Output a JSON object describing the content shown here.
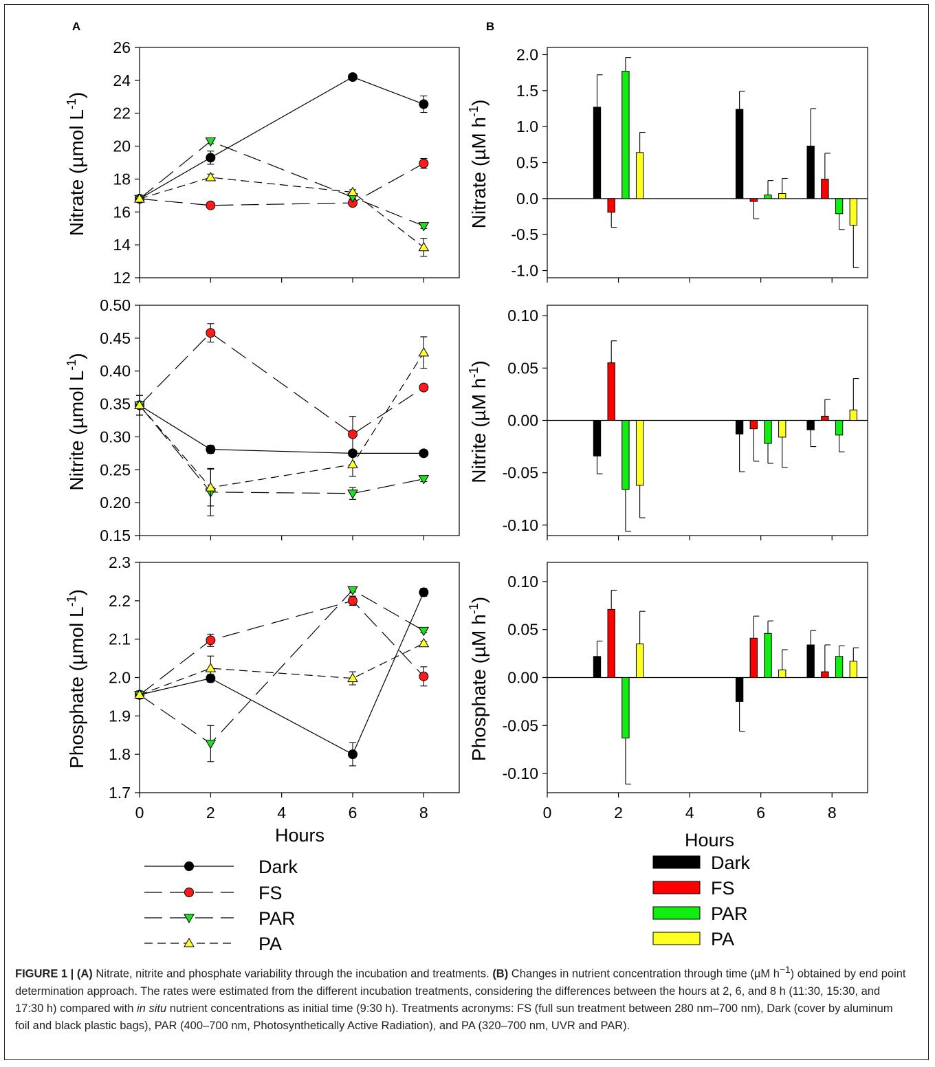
{
  "panel_labels": {
    "a": "A",
    "b": "B"
  },
  "x_label": "Hours",
  "chart_data": [
    {
      "id": "A-nitrate",
      "type": "line",
      "panel": "A",
      "ylabel": "Nitrate (µmol L⁻¹)",
      "ylabel_main": "Nitrate (µmol L",
      "ylabel_sup": "-1",
      "ylabel_end": ")",
      "xlim": [
        0,
        9
      ],
      "ylim": [
        12,
        26
      ],
      "x_ticks": [
        "0",
        "2",
        "4",
        "6",
        "8"
      ],
      "y_ticks": [
        "12",
        "14",
        "16",
        "18",
        "20",
        "22",
        "24",
        "26"
      ],
      "series": [
        {
          "name": "Dark",
          "x": [
            0,
            2,
            6,
            8
          ],
          "y": [
            16.8,
            19.3,
            24.2,
            22.55
          ],
          "err": [
            0.15,
            0.4,
            0.1,
            0.5
          ]
        },
        {
          "name": "FS",
          "x": [
            0,
            2,
            6,
            8
          ],
          "y": [
            16.8,
            16.4,
            16.55,
            18.95
          ],
          "err": [
            0.15,
            0.1,
            0.1,
            0.3
          ]
        },
        {
          "name": "PAR",
          "x": [
            0,
            2,
            6,
            8
          ],
          "y": [
            16.8,
            20.3,
            16.9,
            15.15
          ],
          "err": [
            0.15,
            0.15,
            0.1,
            0.15
          ]
        },
        {
          "name": "PA",
          "x": [
            0,
            2,
            6,
            8
          ],
          "y": [
            16.8,
            18.1,
            17.2,
            13.85
          ],
          "err": [
            0.15,
            0.2,
            0.15,
            0.55
          ]
        }
      ]
    },
    {
      "id": "A-nitrite",
      "type": "line",
      "panel": "A",
      "ylabel": "Nitrite (µmol L⁻¹)",
      "ylabel_main": "Nitrite  (µmol L",
      "ylabel_sup": "-1",
      "ylabel_end": ")",
      "xlim": [
        0,
        9
      ],
      "ylim": [
        0.15,
        0.5
      ],
      "x_ticks": [
        "0",
        "2",
        "4",
        "6",
        "8"
      ],
      "y_ticks": [
        "0.15",
        "0.20",
        "0.25",
        "0.30",
        "0.35",
        "0.40",
        "0.45",
        "0.50"
      ],
      "series": [
        {
          "name": "Dark",
          "x": [
            0,
            2,
            6,
            8
          ],
          "y": [
            0.348,
            0.281,
            0.275,
            0.275
          ],
          "err": [
            0.015,
            0.006,
            0.004,
            0.003
          ]
        },
        {
          "name": "FS",
          "x": [
            0,
            2,
            6,
            8
          ],
          "y": [
            0.348,
            0.458,
            0.304,
            0.375
          ],
          "err": [
            0.015,
            0.014,
            0.027,
            0.005
          ]
        },
        {
          "name": "PAR",
          "x": [
            0,
            2,
            6,
            8
          ],
          "y": [
            0.348,
            0.216,
            0.214,
            0.236
          ],
          "err": [
            0.015,
            0.036,
            0.009,
            0.004
          ]
        },
        {
          "name": "PA",
          "x": [
            0,
            2,
            6,
            8
          ],
          "y": [
            0.348,
            0.223,
            0.258,
            0.428
          ],
          "err": [
            0.015,
            0.028,
            0.018,
            0.024
          ]
        }
      ]
    },
    {
      "id": "A-phosphate",
      "type": "line",
      "panel": "A",
      "ylabel": "Phosphate (µmol L⁻¹)",
      "ylabel_main": "Phosphate (µmol L",
      "ylabel_sup": "-1",
      "ylabel_end": ")",
      "xlim": [
        0,
        9
      ],
      "ylim": [
        1.7,
        2.3
      ],
      "x_ticks": [
        "0",
        "2",
        "4",
        "6",
        "8"
      ],
      "y_ticks": [
        "1.7",
        "1.8",
        "1.9",
        "2.0",
        "2.1",
        "2.2",
        "2.3"
      ],
      "series": [
        {
          "name": "Dark",
          "x": [
            0,
            2,
            6,
            8
          ],
          "y": [
            1.955,
            1.998,
            1.8,
            2.222
          ],
          "err": [
            0.01,
            0.01,
            0.03,
            0.01
          ]
        },
        {
          "name": "FS",
          "x": [
            0,
            2,
            6,
            8
          ],
          "y": [
            1.955,
            2.097,
            2.2,
            2.003
          ],
          "err": [
            0.01,
            0.016,
            0.012,
            0.025
          ]
        },
        {
          "name": "PAR",
          "x": [
            0,
            2,
            6,
            8
          ],
          "y": [
            1.955,
            1.828,
            2.228,
            2.122
          ],
          "err": [
            0.01,
            0.047,
            0.005,
            0.005
          ]
        },
        {
          "name": "PA",
          "x": [
            0,
            2,
            6,
            8
          ],
          "y": [
            1.955,
            2.024,
            1.998,
            2.089
          ],
          "err": [
            0.01,
            0.032,
            0.017,
            0.005
          ]
        }
      ]
    },
    {
      "id": "B-nitrate",
      "type": "bar",
      "panel": "B",
      "ylabel": "Nitrate (µM h⁻¹)",
      "ylabel_main": "Nitrate (µM h",
      "ylabel_sup": "-1",
      "ylabel_end": ")",
      "xlim": [
        0,
        9
      ],
      "ylim": [
        -1.1,
        2.1
      ],
      "x_ticks": [
        "0",
        "2",
        "4",
        "6",
        "8"
      ],
      "y_ticks": [
        "-1.0",
        "-0.5",
        "0.0",
        "0.5",
        "1.0",
        "1.5",
        "2.0"
      ],
      "categories": [
        "2",
        "6",
        "8"
      ],
      "series": [
        {
          "name": "Dark",
          "values": [
            1.27,
            1.24,
            0.73
          ],
          "err": [
            0.45,
            0.25,
            0.52
          ]
        },
        {
          "name": "FS",
          "values": [
            -0.19,
            -0.04,
            0.27
          ],
          "err": [
            0.21,
            0.24,
            0.36
          ]
        },
        {
          "name": "PAR",
          "values": [
            1.77,
            0.05,
            -0.21
          ],
          "err": [
            0.19,
            0.2,
            0.22
          ]
        },
        {
          "name": "PA",
          "values": [
            0.64,
            0.07,
            -0.37
          ],
          "err": [
            0.28,
            0.21,
            0.59
          ]
        }
      ]
    },
    {
      "id": "B-nitrite",
      "type": "bar",
      "panel": "B",
      "ylabel": "Nitrite (µM h⁻¹)",
      "ylabel_main": "Nitrite  (µM h",
      "ylabel_sup": "-1",
      "ylabel_end": ")",
      "xlim": [
        0,
        9
      ],
      "ylim": [
        -0.11,
        0.11
      ],
      "x_ticks": [
        "0",
        "2",
        "4",
        "6",
        "8"
      ],
      "y_ticks": [
        "-0.10",
        "-0.05",
        "0.00",
        "0.05",
        "0.10"
      ],
      "categories": [
        "2",
        "6",
        "8"
      ],
      "series": [
        {
          "name": "Dark",
          "values": [
            -0.034,
            -0.013,
            -0.009
          ],
          "err": [
            0.017,
            0.036,
            0.016
          ]
        },
        {
          "name": "FS",
          "values": [
            0.055,
            -0.008,
            0.004
          ],
          "err": [
            0.021,
            0.031,
            0.016
          ]
        },
        {
          "name": "PAR",
          "values": [
            -0.066,
            -0.022,
            -0.014
          ],
          "err": [
            0.04,
            0.019,
            0.016
          ]
        },
        {
          "name": "PA",
          "values": [
            -0.062,
            -0.016,
            0.01
          ],
          "err": [
            0.031,
            0.029,
            0.03
          ]
        }
      ]
    },
    {
      "id": "B-phosphate",
      "type": "bar",
      "panel": "B",
      "ylabel": "Phosphate (µM h⁻¹)",
      "ylabel_main": "Phosphate (µM h",
      "ylabel_sup": "-1",
      "ylabel_end": ")",
      "xlim": [
        0,
        9
      ],
      "ylim": [
        -0.12,
        0.12
      ],
      "x_ticks": [
        "0",
        "2",
        "4",
        "6",
        "8"
      ],
      "y_ticks": [
        "-0.10",
        "-0.05",
        "0.00",
        "0.05",
        "0.10"
      ],
      "categories": [
        "2",
        "6",
        "8"
      ],
      "series": [
        {
          "name": "Dark",
          "values": [
            0.022,
            -0.025,
            0.034
          ],
          "err": [
            0.016,
            0.031,
            0.015
          ]
        },
        {
          "name": "FS",
          "values": [
            0.071,
            0.041,
            0.006
          ],
          "err": [
            0.02,
            0.023,
            0.028
          ]
        },
        {
          "name": "PAR",
          "values": [
            -0.063,
            0.046,
            0.022
          ],
          "err": [
            0.048,
            0.013,
            0.011
          ]
        },
        {
          "name": "PA",
          "values": [
            0.035,
            0.008,
            0.017
          ],
          "err": [
            0.034,
            0.021,
            0.014
          ]
        }
      ]
    }
  ],
  "legend_a": [
    {
      "name": "Dark",
      "color": "#000000",
      "marker": "circle",
      "dash": "solid"
    },
    {
      "name": "FS",
      "color": "#ff1a1a",
      "marker": "circle",
      "dash": "long"
    },
    {
      "name": "PAR",
      "color": "#22dd22",
      "marker": "triangle-down",
      "dash": "long"
    },
    {
      "name": "PA",
      "color": "#ffff33",
      "marker": "triangle-up",
      "dash": "medium"
    }
  ],
  "legend_b": [
    {
      "name": "Dark",
      "color": "#000000"
    },
    {
      "name": "FS",
      "color": "#ff0000"
    },
    {
      "name": "PAR",
      "color": "#11ee11"
    },
    {
      "name": "PA",
      "color": "#ffff22"
    }
  ],
  "caption": {
    "label": "FIGURE 1 | ",
    "a_tag": "(A)",
    "a_text": " Nitrate, nitrite and phosphate variability through the incubation and treatments. ",
    "b_tag": "(B)",
    "b_text_1": " Changes in nutrient concentration through time (µM h",
    "b_sup": "−1",
    "b_text_2": ") obtained by end point determination approach. The rates were estimated from the different incubation treatments, considering the differences between the hours at 2, 6, and 8 h (11:30, 15:30, and 17:30 h) compared with ",
    "in_situ": "in situ",
    "b_text_3": " nutrient concentrations as initial time (9:30 h). Treatments acronyms: FS (full sun treatment between 280 nm–700 nm), Dark (cover by aluminum foil and black plastic bags), PAR (400–700 nm, Photosynthetically Active Radiation), and PA (320–700 nm, UVR and PAR)."
  }
}
